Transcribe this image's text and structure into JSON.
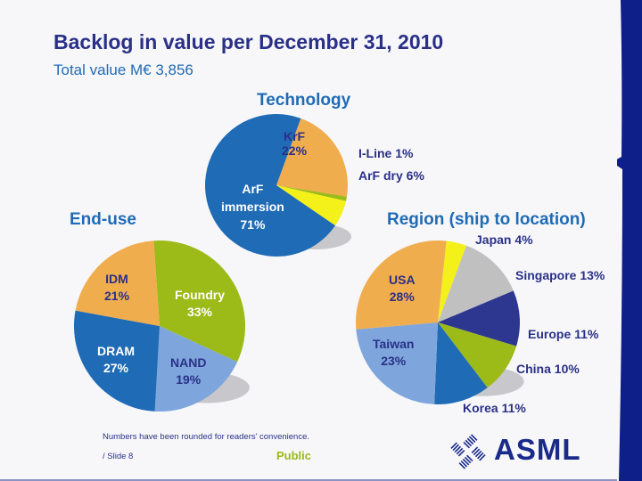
{
  "slide": {
    "title": "Backlog in value per December 31, 2010",
    "subtitle": "Total value M€ 3,856",
    "footnote": "Numbers have been rounded for readers’ convenience.",
    "slide_number": "/ Slide 8",
    "classification": "Public",
    "logo_text": "ASML"
  },
  "chart_data": [
    {
      "type": "pie",
      "title": "Technology",
      "slices": [
        {
          "label": "KrF",
          "value": 22,
          "color": "#f0ad4e"
        },
        {
          "label": "I-Line",
          "value": 1,
          "color": "#9cba18"
        },
        {
          "label": "ArF dry",
          "value": 6,
          "color": "#f4f01a"
        },
        {
          "label": "ArF immersion",
          "value": 71,
          "color": "#1f6bb5"
        }
      ],
      "labels": {
        "KrF": "KrF\n22%",
        "I-Line": "I-Line 1%",
        "ArF dry": "ArF dry 6%",
        "ArF immersion": "ArF\nimmersion\n71%"
      }
    },
    {
      "type": "pie",
      "title": "End-use",
      "slices": [
        {
          "label": "Foundry",
          "value": 33,
          "color": "#9cba18"
        },
        {
          "label": "NAND",
          "value": 19,
          "color": "#7ea6dc"
        },
        {
          "label": "DRAM",
          "value": 27,
          "color": "#1f6bb5"
        },
        {
          "label": "IDM",
          "value": 21,
          "color": "#f0ad4e"
        }
      ],
      "labels": {
        "Foundry": "Foundry\n33%",
        "NAND": "NAND\n19%",
        "DRAM": "DRAM\n27%",
        "IDM": "IDM\n21%"
      }
    },
    {
      "type": "pie",
      "title": "Region (ship to location)",
      "slices": [
        {
          "label": "Japan",
          "value": 4,
          "color": "#f4f01a"
        },
        {
          "label": "Singapore",
          "value": 13,
          "color": "#c0c0c0"
        },
        {
          "label": "Europe",
          "value": 11,
          "color": "#2e3790"
        },
        {
          "label": "China",
          "value": 10,
          "color": "#9cba18"
        },
        {
          "label": "Korea",
          "value": 11,
          "color": "#1f6bb5"
        },
        {
          "label": "Taiwan",
          "value": 23,
          "color": "#7ea6dc"
        },
        {
          "label": "USA",
          "value": 28,
          "color": "#f0ad4e"
        }
      ],
      "labels": {
        "Japan": "Japan 4%",
        "Singapore": "Singapore 13%",
        "Europe": "Europe 11%",
        "China": "China 10%",
        "Korea": "Korea 11%",
        "Taiwan": "Taiwan\n23%",
        "USA": "USA\n28%"
      }
    }
  ],
  "colors": {
    "title": "#2a3088",
    "accent_blue": "#1f6bb5",
    "brand_navy": "#0e1f8a",
    "public_green": "#9cba18"
  }
}
